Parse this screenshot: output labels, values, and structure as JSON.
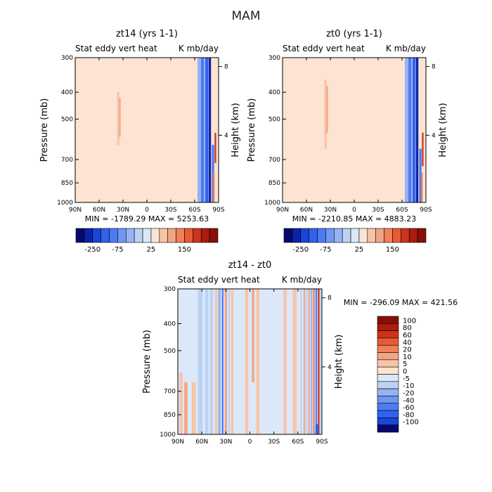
{
  "figure": {
    "title": "MAM"
  },
  "chart_data": [
    {
      "type": "heatmap",
      "panel": "top-left",
      "title": "zt14 (yrs 1-1)",
      "subtitle_left": "Stat eddy vert heat",
      "subtitle_right": "K mb/day",
      "xlabel": "",
      "ylabel": "Pressure (mb)",
      "ylabel_right": "Height (km)",
      "x_ticks": [
        "90N",
        "60N",
        "30N",
        "0",
        "30S",
        "60S",
        "90S"
      ],
      "y_ticks": [
        "300",
        "400",
        "500",
        "700",
        "850",
        "1000"
      ],
      "y_ticks_right": [
        "8",
        "4"
      ],
      "stats": "MIN = -1789.29   MAX = 5253.63",
      "colorbar_ticks": [
        "-250",
        "-75",
        "25",
        "150"
      ],
      "colorbar_colors": [
        "#08086e",
        "#0a24a8",
        "#1746d8",
        "#2f62f0",
        "#4a7cf3",
        "#6f97f2",
        "#96b2f1",
        "#bdd2f3",
        "#dbe8f9",
        "#fde4d2",
        "#f7c4a8",
        "#f5a483",
        "#f1805a",
        "#e85a35",
        "#cf3319",
        "#ad1a0e",
        "#861008"
      ],
      "colorbar_placement": "bottom",
      "field": {
        "background": "#fde4d2",
        "stripes": [
          {
            "lat": -90,
            "w": 3,
            "v": -0.3
          },
          {
            "lat": -83,
            "w": 4,
            "v": -0.3
          },
          {
            "lat": -76,
            "w": 3,
            "v": -0.3
          },
          {
            "lat": -64,
            "w": 9,
            "v": -0.3
          },
          {
            "lat": -50,
            "w": 5,
            "v": -0.3
          },
          {
            "lat": -36,
            "w": 3,
            "v": 0.6,
            "p0": 400,
            "p1": 620
          },
          {
            "lat": -34,
            "w": 2,
            "v": 1,
            "p0": 420,
            "p1": 580
          },
          {
            "lat": -8,
            "w": 1.5,
            "v": -0.3,
            "p0": 300,
            "p1": 750
          },
          {
            "lat": 18,
            "w": 1.5,
            "v": -0.3,
            "p0": 400,
            "p1": 1000
          },
          {
            "lat": 28,
            "w": 8,
            "v": -0.3
          },
          {
            "lat": 48,
            "w": 5,
            "v": -0.3
          },
          {
            "lat": 66,
            "w": 5,
            "v": -2
          },
          {
            "lat": 70,
            "w": 4,
            "v": -3
          },
          {
            "lat": 75,
            "w": 4,
            "v": -4
          },
          {
            "lat": 79,
            "w": 3,
            "v": -5
          },
          {
            "lat": 83,
            "w": 3,
            "v": -3,
            "p0": 620,
            "p1": 1000
          },
          {
            "lat": 86,
            "w": 2,
            "v": 3,
            "p0": 560,
            "p1": 720
          },
          {
            "lat": 84,
            "w": 2,
            "v": 2,
            "p0": 780,
            "p1": 1000
          }
        ]
      }
    },
    {
      "type": "heatmap",
      "panel": "top-right",
      "title": "zt0 (yrs 1-1)",
      "subtitle_left": "Stat eddy vert heat",
      "subtitle_right": "K mb/day",
      "xlabel": "",
      "ylabel": "Pressure (mb)",
      "ylabel_right": "Height (km)",
      "x_ticks": [
        "90N",
        "60N",
        "30N",
        "0",
        "30S",
        "60S",
        "90S"
      ],
      "y_ticks": [
        "300",
        "400",
        "500",
        "700",
        "850",
        "1000"
      ],
      "y_ticks_right": [
        "8",
        "4"
      ],
      "stats": "MIN = -2210.85   MAX = 4883.23",
      "colorbar_ticks": [
        "-250",
        "-75",
        "25",
        "150"
      ],
      "colorbar_colors": [
        "#08086e",
        "#0a24a8",
        "#1746d8",
        "#2f62f0",
        "#4a7cf3",
        "#6f97f2",
        "#96b2f1",
        "#bdd2f3",
        "#dbe8f9",
        "#fde4d2",
        "#f7c4a8",
        "#f5a483",
        "#f1805a",
        "#e85a35",
        "#cf3319",
        "#ad1a0e",
        "#861008"
      ],
      "colorbar_placement": "bottom",
      "field": {
        "background": "#fde4d2",
        "stripes": [
          {
            "lat": -90,
            "w": 3,
            "v": -0.3
          },
          {
            "lat": -83,
            "w": 4,
            "v": -0.3
          },
          {
            "lat": -72,
            "w": 3,
            "v": -0.3
          },
          {
            "lat": -62,
            "w": 8,
            "v": -0.3
          },
          {
            "lat": -48,
            "w": 4,
            "v": -0.3
          },
          {
            "lat": -36,
            "w": 3,
            "v": 0.6,
            "p0": 360,
            "p1": 640
          },
          {
            "lat": -34,
            "w": 2,
            "v": 1,
            "p0": 380,
            "p1": 560
          },
          {
            "lat": -6,
            "w": 1.5,
            "v": -0.3,
            "p0": 300,
            "p1": 750
          },
          {
            "lat": 20,
            "w": 1.5,
            "v": -0.3,
            "p0": 420,
            "p1": 1000
          },
          {
            "lat": 28,
            "w": 8,
            "v": -0.3
          },
          {
            "lat": 50,
            "w": 5,
            "v": -0.3
          },
          {
            "lat": 66,
            "w": 5,
            "v": -2
          },
          {
            "lat": 70,
            "w": 4,
            "v": -3
          },
          {
            "lat": 75,
            "w": 4,
            "v": -4
          },
          {
            "lat": 79,
            "w": 3,
            "v": -5
          },
          {
            "lat": 83,
            "w": 3,
            "v": -3,
            "p0": 640,
            "p1": 1000
          },
          {
            "lat": 86,
            "w": 2,
            "v": 3,
            "p0": 560,
            "p1": 740
          },
          {
            "lat": 85,
            "w": 2,
            "v": 2,
            "p0": 780,
            "p1": 1000
          }
        ]
      }
    },
    {
      "type": "heatmap",
      "panel": "bottom",
      "title": "zt14 - zt0",
      "subtitle_left": "Stat eddy vert heat",
      "subtitle_right": "K mb/day",
      "xlabel": "",
      "ylabel": "Pressure (mb)",
      "ylabel_right": "Height (km)",
      "x_ticks": [
        "90N",
        "60N",
        "30N",
        "0",
        "30S",
        "60S",
        "90S"
      ],
      "y_ticks": [
        "300",
        "400",
        "500",
        "700",
        "850",
        "1000"
      ],
      "y_ticks_right": [
        "8",
        "4"
      ],
      "stats": "MIN = -296.09   MAX = 421.56",
      "colorbar_ticks": [
        "100",
        "80",
        "60",
        "40",
        "20",
        "10",
        "5",
        "0",
        "-5",
        "-10",
        "-20",
        "-40",
        "-60",
        "-80",
        "-100"
      ],
      "colorbar_colors": [
        "#861008",
        "#ad1a0e",
        "#cf3319",
        "#e85a35",
        "#f1805a",
        "#f5a483",
        "#f7c4a8",
        "#fde4d2",
        "#dbe8f9",
        "#bdd2f3",
        "#96b2f1",
        "#6f97f2",
        "#4a7cf3",
        "#2f62f0",
        "#1746d8",
        "#08086e"
      ],
      "colorbar_placement": "right",
      "field": {
        "background": "#dbe8f9",
        "stripes": [
          {
            "lat": -86,
            "w": 4,
            "v": 0.5,
            "p0": 600,
            "p1": 1000
          },
          {
            "lat": -80,
            "w": 4,
            "v": 1,
            "p0": 650,
            "p1": 1000
          },
          {
            "lat": -75,
            "w": 3,
            "v": -0.5,
            "p0": 420,
            "p1": 900
          },
          {
            "lat": -70,
            "w": 5,
            "v": 0.5,
            "p0": 650,
            "p1": 1000
          },
          {
            "lat": -62,
            "w": 6,
            "v": -1
          },
          {
            "lat": -54,
            "w": 4,
            "v": -1.5
          },
          {
            "lat": -48,
            "w": 4,
            "v": -1
          },
          {
            "lat": -42,
            "w": 3,
            "v": 0.5
          },
          {
            "lat": -38,
            "w": 3,
            "v": -2
          },
          {
            "lat": -34,
            "w": 2,
            "v": -3
          },
          {
            "lat": -30,
            "w": 3,
            "v": 1
          },
          {
            "lat": -26,
            "w": 2,
            "v": -1
          },
          {
            "lat": -22,
            "w": 3,
            "v": 0.5
          },
          {
            "lat": -18,
            "w": 4,
            "v": -0.5
          },
          {
            "lat": -4,
            "w": 4,
            "v": 0.5
          },
          {
            "lat": 4,
            "w": 3,
            "v": 1,
            "p0": 300,
            "p1": 650
          },
          {
            "lat": 10,
            "w": 4,
            "v": 0.5
          },
          {
            "lat": 18,
            "w": 3,
            "v": -0.5
          },
          {
            "lat": 44,
            "w": 4,
            "v": 0.5
          },
          {
            "lat": 56,
            "w": 5,
            "v": 0.5
          },
          {
            "lat": 64,
            "w": 2,
            "v": -1
          },
          {
            "lat": 68,
            "w": 2,
            "v": 1
          },
          {
            "lat": 71,
            "w": 2,
            "v": -1.5
          },
          {
            "lat": 74,
            "w": 2,
            "v": 1.5
          },
          {
            "lat": 77,
            "w": 2,
            "v": -2
          },
          {
            "lat": 80,
            "w": 2,
            "v": 2
          },
          {
            "lat": 83,
            "w": 2,
            "v": -3
          },
          {
            "lat": 86,
            "w": 2,
            "v": 3
          },
          {
            "lat": 84,
            "w": 4,
            "v": -4,
            "p0": 920,
            "p1": 1000
          },
          {
            "lat": 88,
            "w": 2,
            "v": -1
          }
        ]
      }
    }
  ]
}
